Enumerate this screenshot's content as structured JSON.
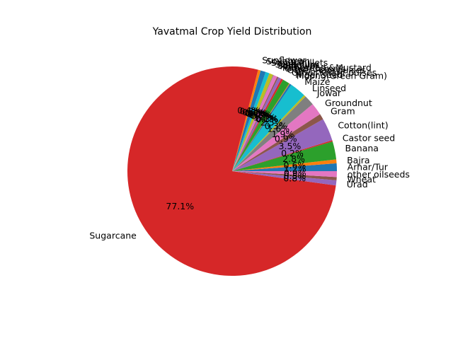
{
  "chart_data": {
    "type": "pie",
    "title": "Yavatmal Crop Yield Distribution",
    "start_angle": 0,
    "direction": "counterclockwise",
    "slices": [
      {
        "label": "Arhar/Tur",
        "percent": 1.2,
        "color": "#1f77b4"
      },
      {
        "label": "Bajra",
        "percent": 0.6,
        "color": "#ff7f0e"
      },
      {
        "label": "Banana",
        "percent": 2.8,
        "color": "#2ca02c"
      },
      {
        "label": "Castor seed",
        "percent": 0.2,
        "color": "#d62728"
      },
      {
        "label": "Cotton(lint)",
        "percent": 3.5,
        "color": "#9467bd"
      },
      {
        "label": "Gram",
        "percent": 0.9,
        "color": "#8c564b"
      },
      {
        "label": "Groundnut",
        "percent": 1.9,
        "color": "#e377c2"
      },
      {
        "label": "Jowar",
        "percent": 1.6,
        "color": "#7f7f7f"
      },
      {
        "label": "Linseed",
        "percent": 0.3,
        "color": "#bcbd22"
      },
      {
        "label": "Maize",
        "percent": 2.5,
        "color": "#17becf"
      },
      {
        "label": "Moong(Green Gram)",
        "percent": 0.3,
        "color": "#1f77b4"
      },
      {
        "label": "Niger seed",
        "percent": 0.1,
        "color": "#ff7f0e"
      },
      {
        "label": "Other Kharif pulses",
        "percent": 1.1,
        "color": "#2ca02c"
      },
      {
        "label": "Other Rabi pulses",
        "percent": 0.3,
        "color": "#d62728"
      },
      {
        "label": "Other Cereals",
        "percent": 0.5,
        "color": "#9467bd"
      },
      {
        "label": "Rapeseed &Mustard",
        "percent": 0.2,
        "color": "#8c564b"
      },
      {
        "label": "Rice",
        "percent": 0.6,
        "color": "#e377c2"
      },
      {
        "label": "Safflower",
        "percent": 0.1,
        "color": "#7f7f7f"
      },
      {
        "label": "Sesamum",
        "percent": 0.6,
        "color": "#bcbd22"
      },
      {
        "label": "Small millets",
        "percent": 0.6,
        "color": "#17becf"
      },
      {
        "label": "Soyabean",
        "percent": 0.8,
        "color": "#1f77b4"
      },
      {
        "label": "Sunflower",
        "percent": 0.4,
        "color": "#ff7f0e"
      },
      {
        "label": "Sugarcane",
        "percent": 77.1,
        "color": "#d62728"
      },
      {
        "label": "Urad",
        "percent": 0.8,
        "color": "#9467bd"
      },
      {
        "label": "Wheat",
        "percent": 0.5,
        "color": "#8c564b"
      },
      {
        "label": "other oilseeds",
        "percent": 0.9,
        "color": "#e377c2"
      }
    ]
  }
}
